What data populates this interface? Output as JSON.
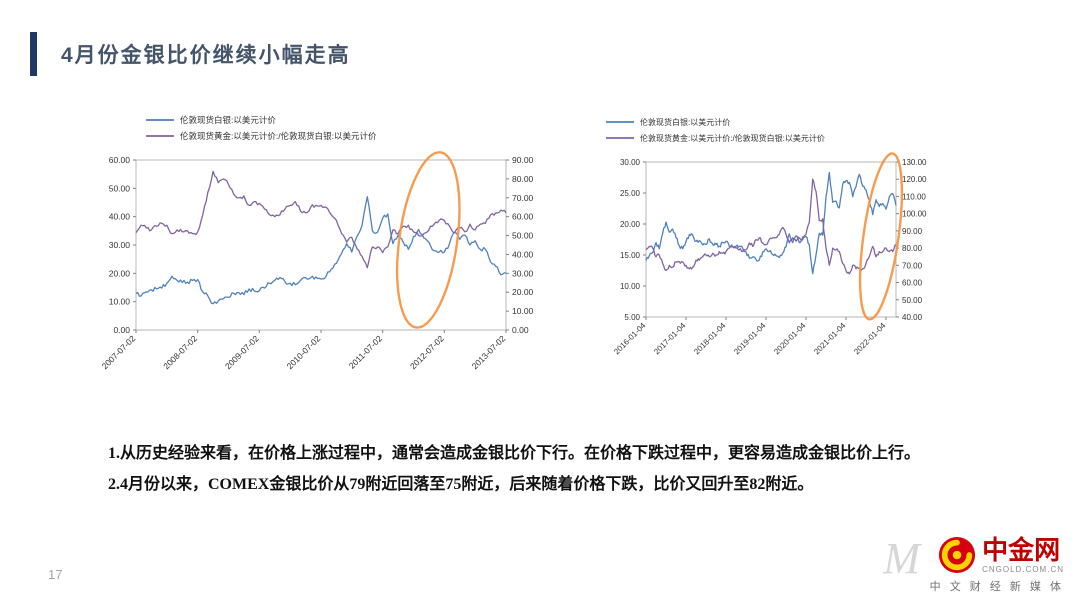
{
  "header": {
    "title": "4月份金银比价继续小幅走高"
  },
  "colors": {
    "accent_navy": "#1F3864",
    "title_text": "#44546A",
    "silver_line": "#4F81BD",
    "ratio_line": "#8064A2",
    "ellipse_orange": "#F79646",
    "brand_red": "#C00000",
    "logo_red": "#D7000F",
    "logo_yellow": "#FFD400"
  },
  "chart_data": [
    {
      "type": "line",
      "title": "",
      "legend_position": "top",
      "grid": false,
      "x_tick_labels": [
        "2007-07-02",
        "2008-07-02",
        "2009-07-02",
        "2010-07-02",
        "2011-07-02",
        "2012-07-02",
        "2013-07-02"
      ],
      "x_tick_every": 12,
      "left_axis": {
        "min": 0,
        "max": 60,
        "step": 10
      },
      "right_axis": {
        "min": 0,
        "max": 90,
        "step": 10
      },
      "series": [
        {
          "name": "伦敦现货白银:以美元计价",
          "axis": "left",
          "color": "#4F81BD",
          "values": [
            12.9,
            12.0,
            13.5,
            14.2,
            14.5,
            14.8,
            16.5,
            19.0,
            17.5,
            16.8,
            16.9,
            17.5,
            17.8,
            13.5,
            12.0,
            9.3,
            10.2,
            11.0,
            11.5,
            13.0,
            13.2,
            12.5,
            14.5,
            13.8,
            13.9,
            14.8,
            16.5,
            17.5,
            18.5,
            17.0,
            16.5,
            16.0,
            17.5,
            18.5,
            18.5,
            18.7,
            18.0,
            19.0,
            21.5,
            23.5,
            27.0,
            30.5,
            27.5,
            33.0,
            37.0,
            47.0,
            35.0,
            34.5,
            39.5,
            41.0,
            30.5,
            33.5,
            31.0,
            28.5,
            33.0,
            35.5,
            32.5,
            31.0,
            28.0,
            27.5,
            27.5,
            30.5,
            34.5,
            32.0,
            33.5,
            30.0,
            31.5,
            28.5,
            28.5,
            24.0,
            22.5,
            19.5,
            20.0
          ]
        },
        {
          "name": "伦敦现货黄金:以美元计价:/伦敦现货白银:以美元计价",
          "axis": "right",
          "color": "#8064A2",
          "values": [
            51.5,
            55.5,
            54,
            53,
            55,
            56.5,
            55.5,
            51,
            53,
            52,
            52.5,
            51,
            52,
            61,
            73,
            84,
            78,
            80,
            77,
            72,
            70,
            71,
            66,
            68,
            67,
            64,
            61,
            60,
            61,
            64,
            66,
            68,
            63,
            62,
            65,
            66,
            66,
            65,
            61,
            58,
            51,
            46.5,
            49,
            43,
            39,
            33,
            44,
            44,
            41,
            44,
            53,
            51,
            55,
            55.5,
            52,
            50,
            51,
            53,
            56,
            58,
            58,
            55,
            51.5,
            54,
            52,
            56,
            53,
            56,
            56.5,
            61,
            62,
            63.5,
            62
          ]
        }
      ],
      "annotation": {
        "shape": "ellipse",
        "color": "#F79646"
      }
    },
    {
      "type": "line",
      "title": "",
      "legend_position": "top",
      "grid": false,
      "x_tick_labels": [
        "2016-01-04",
        "2017-01-04",
        "2018-01-04",
        "2019-01-04",
        "2020-01-04",
        "2021-01-04",
        "2022-01-04"
      ],
      "x_tick_every": 12,
      "left_axis": {
        "min": 5,
        "max": 30,
        "step": 5
      },
      "right_axis": {
        "min": 40,
        "max": 130,
        "step": 10
      },
      "series": [
        {
          "name": "伦敦现货白银:以美元计价",
          "axis": "left",
          "color": "#4F81BD",
          "values": [
            14.1,
            14.9,
            15.4,
            17.0,
            16.0,
            18.5,
            20.3,
            18.7,
            19.2,
            17.8,
            16.5,
            16.0,
            17.2,
            18.3,
            18.2,
            17.2,
            17.3,
            16.6,
            16.7,
            17.6,
            16.7,
            16.7,
            16.4,
            17.0,
            17.2,
            16.4,
            16.3,
            16.4,
            16.4,
            16.1,
            15.5,
            14.5,
            14.7,
            14.3,
            14.2,
            15.5,
            16.0,
            15.6,
            15.1,
            14.9,
            14.6,
            15.3,
            16.3,
            18.4,
            17.0,
            18.1,
            17.0,
            17.9,
            18.0,
            16.7,
            12.0,
            15.0,
            18.5,
            18.2,
            24.4,
            28.3,
            23.5,
            23.7,
            22.6,
            26.4,
            27.0,
            26.7,
            24.4,
            26.0,
            28.0,
            26.1,
            25.5,
            23.9,
            21.5,
            23.9,
            22.8,
            23.3,
            22.4,
            24.4,
            24.9,
            23.0
          ]
        },
        {
          "name": "伦敦现货黄金:以美元计价:/伦敦现货白银:以美元计价",
          "axis": "right",
          "color": "#8064A2",
          "values": [
            79,
            81,
            80,
            75,
            76,
            71,
            67,
            70,
            69,
            72,
            72,
            72,
            70,
            68,
            69,
            73,
            73,
            75,
            76,
            75,
            77,
            76,
            78,
            77,
            78,
            80,
            81,
            80,
            79,
            78,
            79,
            83,
            81,
            85,
            86,
            83,
            82,
            85,
            86,
            86,
            88,
            92,
            88,
            83,
            86,
            84,
            86,
            85,
            88,
            95,
            120,
            113,
            96,
            97,
            80,
            70,
            80,
            79,
            78,
            71,
            67,
            65,
            70,
            68,
            68,
            68,
            71,
            75,
            81,
            75,
            78,
            78,
            80,
            78,
            78,
            82
          ]
        }
      ],
      "annotation": {
        "shape": "ellipse",
        "color": "#F79646"
      }
    }
  ],
  "notes": {
    "line1": "1.从历史经验来看，在价格上涨过程中，通常会造成金银比价下行。在价格下跌过程中，更容易造成金银比价上行。",
    "line2": "2.4月份以来，COMEX金银比价从79附近回落至75附近，后来随着价格下跌，比价又回升至82附近。"
  },
  "footer": {
    "page_number": "17",
    "watermark": "M",
    "brand": "中金网",
    "brand_domain": "CNGOLD.COM.CN",
    "brand_tagline": "中 文 财 经 新 媒 体"
  }
}
